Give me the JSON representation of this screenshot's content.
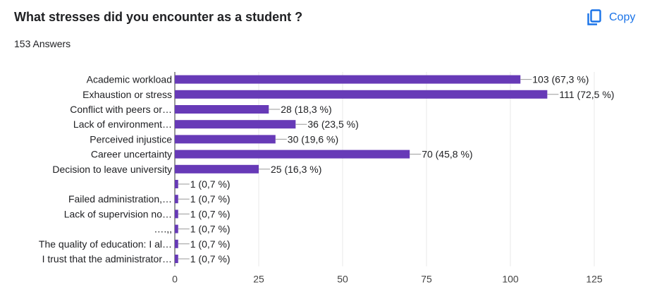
{
  "header": {
    "title": "What stresses did you encounter as a student ?",
    "answers_label": "153 Answers",
    "copy_label": "Copy",
    "copy_icon": "copy-icon"
  },
  "colors": {
    "bar": "#673ab7",
    "accent": "#1a73e8",
    "grid": "#e8e8e8",
    "text": "#202124"
  },
  "chart_data": {
    "type": "bar",
    "orientation": "horizontal",
    "categories": [
      "Academic workload",
      "Exhaustion or stress",
      "Conflict with peers or…",
      "Lack of environment…",
      "Perceived injustice",
      "Career uncertainty",
      "Decision to leave university",
      "",
      "Failed administration,…",
      "Lack of supervision no…",
      "….,,",
      "The quality of education: I al…",
      "I trust that the administrator…"
    ],
    "values": [
      103,
      111,
      28,
      36,
      30,
      70,
      25,
      1,
      1,
      1,
      1,
      1,
      1
    ],
    "value_labels": [
      "103 (67,3 %)",
      "111 (72,5 %)",
      "28 (18,3 %)",
      "36 (23,5 %)",
      "30 (19,6 %)",
      "70 (45,8 %)",
      "25 (16,3 %)",
      "1 (0,7 %)",
      "1 (0,7 %)",
      "1 (0,7 %)",
      "1 (0,7 %)",
      "1 (0,7 %)",
      "1 (0,7 %)"
    ],
    "xlim": [
      0,
      125
    ],
    "xticks": [
      0,
      25,
      50,
      75,
      100,
      125
    ],
    "grid": true
  }
}
